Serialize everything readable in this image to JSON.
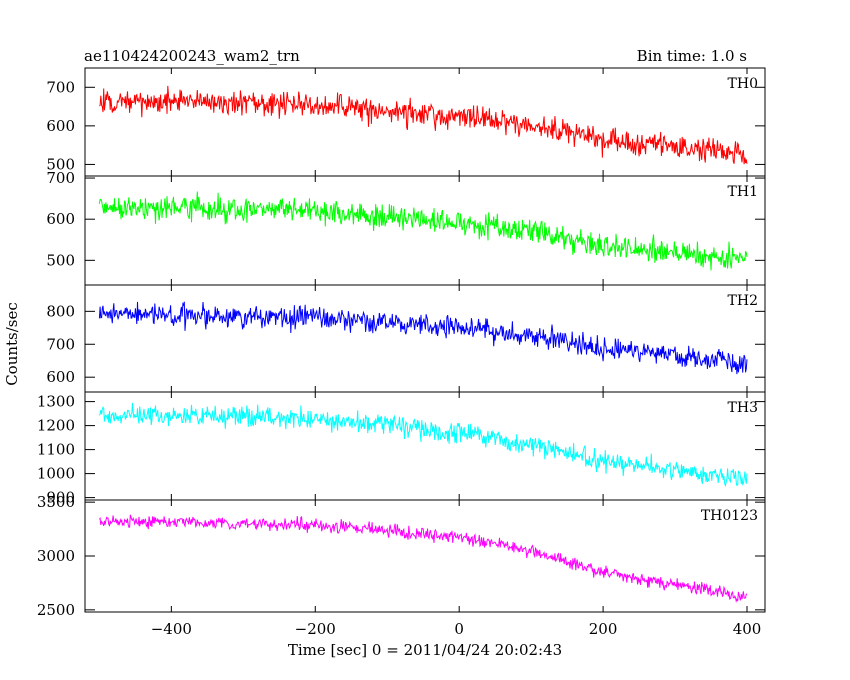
{
  "header": {
    "title": "ae110424200243_wam2_trn",
    "bin_time": "Bin time: 1.0 s"
  },
  "chart_data": {
    "type": "line",
    "xlabel": "Time [sec] 0 = 2011/04/24 20:02:43",
    "ylabel": "Counts/sec",
    "xlim": [
      -520,
      425
    ],
    "x_ticks": [
      -400,
      -200,
      0,
      200,
      400
    ],
    "x_start": -500,
    "x_end": 400,
    "x_step": 1,
    "panels": [
      {
        "name": "TH0",
        "color": "#ff0000",
        "ylim": [
          470,
          750
        ],
        "y_ticks": [
          500,
          600,
          700
        ],
        "trend": [
          {
            "x": -500,
            "y": 665
          },
          {
            "x": -200,
            "y": 655
          },
          {
            "x": 0,
            "y": 625
          },
          {
            "x": 100,
            "y": 600
          },
          {
            "x": 200,
            "y": 565
          },
          {
            "x": 400,
            "y": 525
          }
        ],
        "noise": 42
      },
      {
        "name": "TH1",
        "color": "#00ff00",
        "ylim": [
          440,
          705
        ],
        "y_ticks": [
          500,
          600,
          700
        ],
        "trend": [
          {
            "x": -500,
            "y": 630
          },
          {
            "x": -200,
            "y": 620
          },
          {
            "x": 0,
            "y": 590
          },
          {
            "x": 100,
            "y": 570
          },
          {
            "x": 200,
            "y": 535
          },
          {
            "x": 400,
            "y": 500
          }
        ],
        "noise": 38
      },
      {
        "name": "TH2",
        "color": "#0000ff",
        "ylim": [
          555,
          880
        ],
        "y_ticks": [
          600,
          700,
          800
        ],
        "trend": [
          {
            "x": -500,
            "y": 795
          },
          {
            "x": -200,
            "y": 780
          },
          {
            "x": 0,
            "y": 750
          },
          {
            "x": 100,
            "y": 725
          },
          {
            "x": 200,
            "y": 690
          },
          {
            "x": 400,
            "y": 640
          }
        ],
        "noise": 45
      },
      {
        "name": "TH3",
        "color": "#00ffff",
        "ylim": [
          890,
          1340
        ],
        "y_ticks": [
          900,
          1000,
          1100,
          1200,
          1300
        ],
        "trend": [
          {
            "x": -500,
            "y": 1245
          },
          {
            "x": -200,
            "y": 1230
          },
          {
            "x": 0,
            "y": 1170
          },
          {
            "x": 100,
            "y": 1120
          },
          {
            "x": 200,
            "y": 1050
          },
          {
            "x": 400,
            "y": 975
          }
        ],
        "noise": 55
      },
      {
        "name": "TH0123",
        "color": "#ff00ff",
        "ylim": [
          2480,
          3520
        ],
        "y_ticks": [
          2500,
          3000,
          3500
        ],
        "trend": [
          {
            "x": -500,
            "y": 3320
          },
          {
            "x": -200,
            "y": 3290
          },
          {
            "x": 0,
            "y": 3180
          },
          {
            "x": 100,
            "y": 3050
          },
          {
            "x": 200,
            "y": 2850
          },
          {
            "x": 400,
            "y": 2620
          }
        ],
        "noise": 75
      }
    ]
  }
}
